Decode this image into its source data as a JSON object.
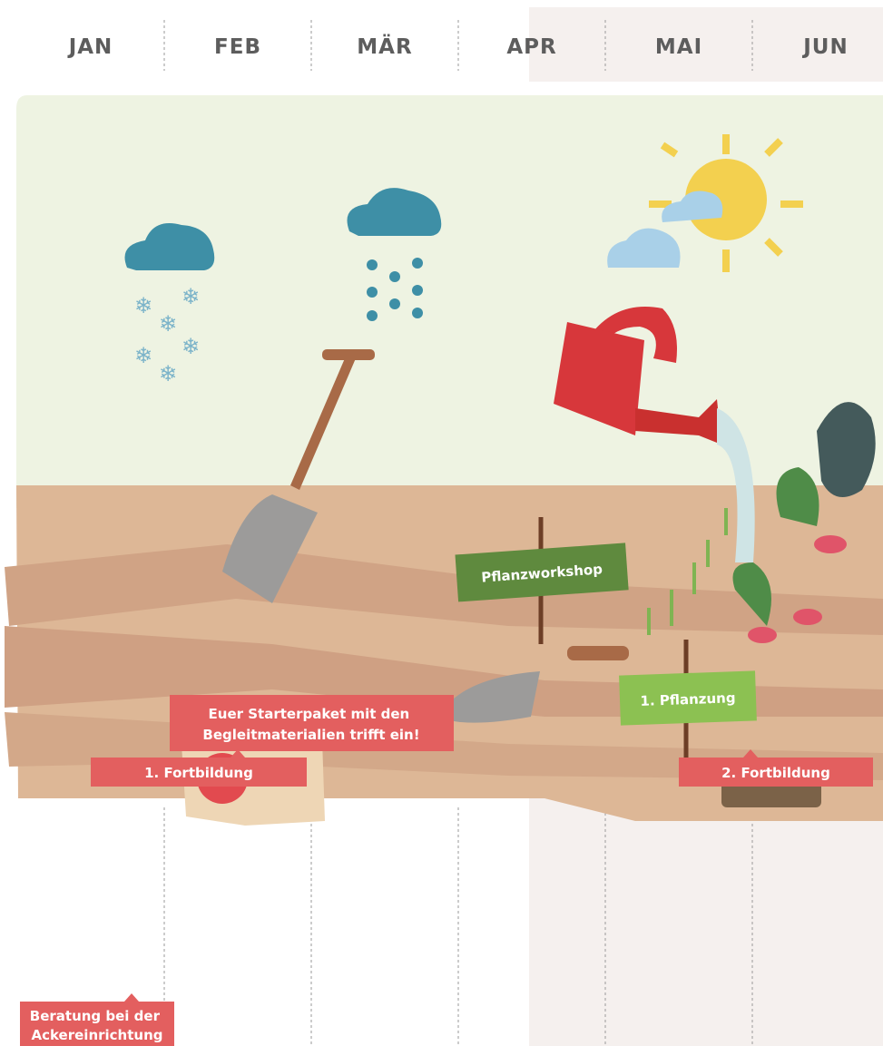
{
  "header": {
    "months": [
      "JAN",
      "FEB",
      "MÄR",
      "APR",
      "MAI",
      "JUN"
    ]
  },
  "signs": [
    {
      "label": "Pflanzworkshop"
    },
    {
      "label": "1. Pflanzung"
    }
  ],
  "callouts": [
    {
      "lines": [
        "Euer Starterpaket mit den",
        "Begleitmaterialien trifft ein!"
      ]
    },
    {
      "lines": [
        "1. Fortbildung"
      ]
    },
    {
      "lines": [
        "2. Fortbildung"
      ]
    },
    {
      "lines": [
        "Beratung bei der",
        "Ackereinrichtung"
      ]
    }
  ]
}
